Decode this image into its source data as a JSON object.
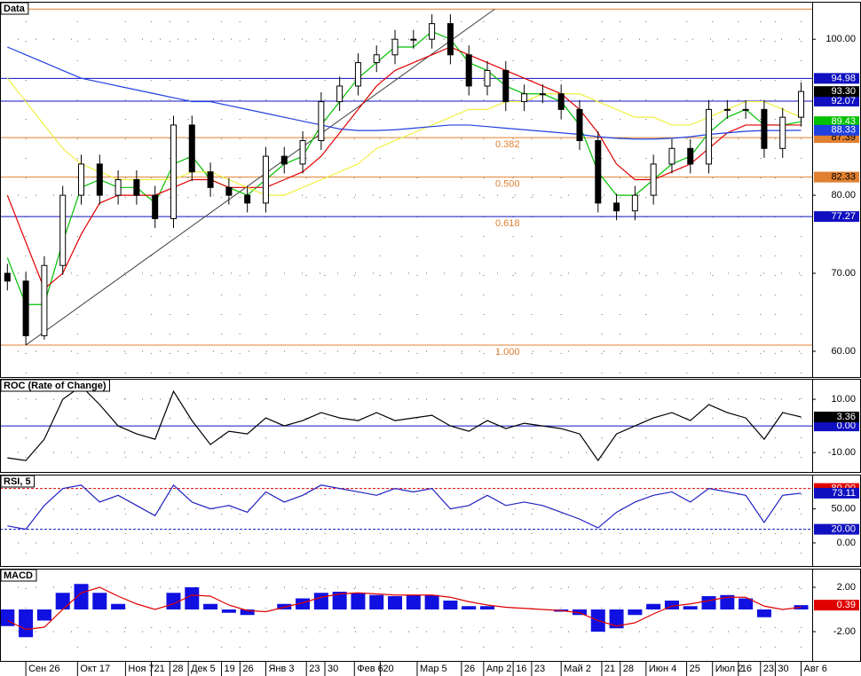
{
  "chart_data": [
    {
      "type": "candlestick",
      "title": "Data",
      "x": [
        2,
        7,
        12,
        17,
        22,
        27,
        32,
        37,
        42,
        47,
        52,
        57,
        62,
        67,
        72,
        77,
        82,
        87,
        92,
        97,
        102,
        107,
        112,
        117,
        122,
        127,
        132,
        137,
        142,
        147,
        152,
        157,
        162,
        167,
        172,
        177,
        182,
        187,
        192,
        197,
        202,
        207,
        212,
        217
      ],
      "xlim": [
        0,
        220
      ],
      "xticks": [
        {
          "value": 7,
          "label": "Сен 26"
        },
        {
          "value": 21,
          "label": "Окт 17"
        },
        {
          "value": 34,
          "label": "Ноя 7"
        },
        {
          "value": 41,
          "label": "21"
        },
        {
          "value": 46,
          "label": "28"
        },
        {
          "value": 51,
          "label": "Дек 5"
        },
        {
          "value": 60,
          "label": "19"
        },
        {
          "value": 65,
          "label": "26"
        },
        {
          "value": 72,
          "label": "Янв 3"
        },
        {
          "value": 83,
          "label": "23"
        },
        {
          "value": 88,
          "label": "30"
        },
        {
          "value": 96,
          "label": "Фев 6"
        },
        {
          "value": 103,
          "label": "20"
        },
        {
          "value": 113,
          "label": "Мар 5"
        },
        {
          "value": 125,
          "label": "26"
        },
        {
          "value": 131,
          "label": "Апр 2"
        },
        {
          "value": 139,
          "label": "16"
        },
        {
          "value": 144,
          "label": "23"
        },
        {
          "value": 152,
          "label": "Май 2"
        },
        {
          "value": 163,
          "label": "21"
        },
        {
          "value": 168,
          "label": "28"
        },
        {
          "value": 175,
          "label": "Июн 4"
        },
        {
          "value": 186,
          "label": "25"
        },
        {
          "value": 193,
          "label": "Июл 2"
        },
        {
          "value": 200,
          "label": "16"
        },
        {
          "value": 206,
          "label": "23"
        },
        {
          "value": 210,
          "label": "30"
        },
        {
          "value": 217,
          "label": "Авг 6"
        }
      ],
      "ylim": [
        56.7,
        104.8
      ],
      "yticks": [
        {
          "value": 100,
          "label": "100.00"
        },
        {
          "value": 80,
          "label": "80.00"
        },
        {
          "value": 70,
          "label": "70.00"
        },
        {
          "value": 60,
          "label": "60.00"
        }
      ],
      "grid": true,
      "open": [
        70,
        69,
        62,
        71,
        80,
        84,
        80,
        82,
        80,
        77,
        89,
        83,
        81,
        80,
        79,
        85,
        84,
        87,
        92,
        94,
        97,
        98,
        100,
        100,
        102,
        98,
        94,
        96,
        92,
        93,
        93,
        91,
        87,
        79,
        78,
        80,
        84,
        86,
        84,
        91,
        91,
        91,
        86,
        90
      ],
      "high": [
        71.2,
        70.2,
        72.2,
        81.2,
        85.2,
        85.2,
        83.2,
        83.2,
        81.2,
        90.2,
        90.2,
        84.2,
        82.2,
        81.2,
        86.2,
        86.2,
        88.2,
        93.2,
        95.2,
        98.2,
        99.2,
        101.2,
        101.2,
        103.2,
        103.2,
        99.2,
        97.2,
        97.2,
        94.2,
        94.2,
        94.2,
        92.2,
        88.2,
        80.2,
        81.2,
        85.2,
        87.2,
        87.2,
        92.2,
        92.2,
        92.2,
        92.2,
        91.2,
        94.5
      ],
      "low": [
        67.8,
        60.8,
        61.5,
        69.8,
        78.8,
        78.8,
        78.8,
        78.8,
        75.8,
        75.8,
        81.8,
        79.8,
        78.8,
        77.8,
        77.8,
        82.8,
        82.8,
        85.8,
        90.8,
        92.8,
        95.8,
        96.8,
        98.8,
        98.8,
        96.8,
        92.8,
        92.8,
        90.8,
        90.8,
        91.8,
        89.8,
        85.8,
        77.8,
        76.8,
        76.8,
        78.8,
        82.8,
        82.8,
        82.8,
        89.8,
        89.8,
        84.8,
        84.8,
        88.8
      ],
      "close": [
        69,
        62,
        71,
        80,
        84,
        80,
        82,
        80,
        77,
        89,
        83,
        81,
        80,
        79,
        85,
        84,
        87,
        92,
        94,
        97,
        98,
        100,
        100,
        102,
        98,
        94,
        96,
        92,
        93,
        93,
        91,
        87,
        79,
        78,
        80,
        84,
        86,
        84,
        91,
        91,
        91,
        86,
        90,
        93.3
      ],
      "series": [
        {
          "color": "#00c000",
          "values": [
            72,
            66,
            66,
            74,
            81,
            82,
            81,
            81,
            79,
            84,
            85,
            82,
            81,
            80,
            82,
            84,
            85,
            89,
            92,
            95,
            97,
            99,
            99,
            101,
            100,
            97,
            96,
            94,
            93,
            93,
            92,
            89,
            83,
            80,
            80,
            82,
            84,
            85,
            88,
            90,
            91,
            89,
            89,
            89.43
          ]
        },
        {
          "color": "#e00000",
          "values": [
            80,
            74,
            68,
            70,
            75,
            79,
            80,
            80,
            80,
            81,
            82,
            82,
            81,
            81,
            81,
            82,
            83,
            85,
            88,
            91,
            94,
            96,
            97,
            98,
            99,
            98,
            97,
            96,
            95,
            94,
            93,
            91,
            88,
            84,
            82,
            82,
            83,
            84,
            86,
            88,
            89,
            89,
            89,
            89
          ]
        },
        {
          "color": "#f0f040",
          "values": [
            95,
            92,
            89,
            86,
            84,
            83,
            82,
            82,
            82,
            82,
            83,
            83,
            82,
            81,
            80,
            80,
            81,
            82,
            83,
            84,
            86,
            87,
            88,
            89,
            90,
            91,
            91,
            92,
            92,
            93,
            93,
            93,
            92,
            91,
            90,
            90,
            89,
            89,
            90,
            91,
            92,
            92,
            91,
            90
          ]
        },
        {
          "color": "#2040e0",
          "values": [
            99,
            98,
            97,
            96,
            95,
            94.5,
            94,
            93.5,
            93,
            92.5,
            92,
            92,
            91.5,
            91,
            90.5,
            90,
            89.5,
            89,
            88.5,
            88.3,
            88.3,
            88.4,
            88.6,
            88.8,
            89,
            89,
            88.8,
            88.6,
            88.4,
            88.2,
            88,
            87.8,
            87.5,
            87.3,
            87.2,
            87.2,
            87.3,
            87.5,
            87.8,
            88,
            88.2,
            88.3,
            88.3,
            88.33
          ]
        }
      ],
      "trendline": {
        "color": "#404040",
        "x": [
          7,
          134
        ],
        "y": [
          60.8,
          103.86
        ]
      },
      "levels": [
        {
          "value": 103.86,
          "color": "#e08030"
        },
        {
          "value": 94.98,
          "color": "#1010c0",
          "label": "94.98"
        },
        {
          "value": 92.07,
          "color": "#1010c0",
          "label": "92.07"
        },
        {
          "value": 87.39,
          "color": "#e08030",
          "label": "87.39",
          "ratio": "0.382"
        },
        {
          "value": 82.33,
          "color": "#e08030",
          "label": "82.33",
          "ratio": "0.500"
        },
        {
          "value": 77.27,
          "color": "#1010c0",
          "label": "77.27",
          "ratio": "0.618"
        },
        {
          "value": 60.8,
          "color": "#e08030",
          "ratio": "1.000"
        }
      ],
      "markers": [
        {
          "value": 93.3,
          "label": "93.30",
          "color": "#000000"
        },
        {
          "value": 89.43,
          "label": "89.43",
          "color": "#00c000"
        },
        {
          "value": 88.33,
          "label": "88.33",
          "color": "#2040e0"
        }
      ]
    },
    {
      "type": "line",
      "title": "ROC (Rate of Change)",
      "ylim": [
        -17.3,
        17.7
      ],
      "yticks": [
        {
          "value": 10,
          "label": "10.00"
        },
        {
          "value": -10,
          "label": "-10.00"
        }
      ],
      "series": [
        {
          "color": "#000000",
          "values": [
            -12,
            -13,
            -5,
            10,
            15,
            8,
            0,
            -3,
            -5,
            13,
            2,
            -7,
            -2,
            -3,
            3,
            0,
            2,
            5,
            3,
            2,
            5,
            2,
            3,
            4,
            0,
            -2,
            2,
            -1,
            1,
            0,
            -1,
            -3,
            -13,
            -3,
            0,
            3,
            5,
            2,
            8,
            5,
            3,
            -5,
            5,
            3.36
          ]
        }
      ],
      "levels": [
        {
          "value": 0,
          "color": "#1010c0",
          "label": "0.00"
        }
      ],
      "markers": [
        {
          "value": 3.36,
          "label": "3.36",
          "color": "#000000"
        }
      ]
    },
    {
      "type": "line",
      "title": "RSI, 5",
      "ylim": [
        -34,
        100.4
      ],
      "yticks": [
        {
          "value": 50,
          "label": "50.00"
        },
        {
          "value": 0,
          "label": "0.00"
        }
      ],
      "series": [
        {
          "color": "#2020c0",
          "values": [
            25,
            20,
            55,
            80,
            85,
            60,
            70,
            55,
            40,
            85,
            60,
            50,
            55,
            45,
            75,
            60,
            70,
            85,
            80,
            75,
            70,
            80,
            75,
            80,
            50,
            55,
            70,
            55,
            60,
            55,
            45,
            35,
            22,
            45,
            60,
            70,
            75,
            60,
            80,
            75,
            70,
            30,
            70,
            73.11
          ]
        }
      ],
      "levels": [
        {
          "value": 80,
          "color": "#e00000",
          "label": "80.00",
          "dash": true
        },
        {
          "value": 20,
          "color": "#1010c0",
          "label": "20.00",
          "dash": true
        }
      ],
      "markers": [
        {
          "value": 73.11,
          "label": "73.11",
          "color": "#1010c0"
        }
      ]
    },
    {
      "type": "bar",
      "title": "MACD",
      "ylim": [
        -4.64,
        3.68
      ],
      "yticks": [
        {
          "value": 2,
          "label": "2.00"
        },
        {
          "value": -2,
          "label": "-2.00"
        }
      ],
      "color": "#1010e0",
      "values": [
        -1.5,
        -2.5,
        -1,
        1.5,
        2.3,
        1.5,
        0.5,
        0,
        0,
        1.5,
        2,
        0.5,
        -0.3,
        -0.5,
        0,
        0.5,
        1,
        1.5,
        1.6,
        1.5,
        1.3,
        1.2,
        1.3,
        1.3,
        0.8,
        0.3,
        0.3,
        0,
        0,
        0,
        -0.2,
        -0.5,
        -2,
        -1.7,
        -0.5,
        0.5,
        0.8,
        0.3,
        1.2,
        1.3,
        1,
        -0.7,
        0,
        0.39
      ],
      "series": [
        {
          "color": "#e00000",
          "values": [
            -1,
            -1.8,
            -1.6,
            0,
            1.5,
            2,
            1.2,
            0.5,
            0,
            0.5,
            1.3,
            1.2,
            0.4,
            -0.1,
            -0.2,
            0.2,
            0.6,
            1.1,
            1.4,
            1.5,
            1.4,
            1.3,
            1.3,
            1.3,
            1.1,
            0.7,
            0.4,
            0.2,
            0.1,
            0,
            -0.1,
            -0.3,
            -1,
            -1.5,
            -1.2,
            -0.4,
            0.3,
            0.5,
            0.8,
            1.1,
            1.1,
            0.3,
            0,
            0.2
          ]
        }
      ],
      "markers": [
        {
          "value": 0.39,
          "label": "0.39",
          "color": "#e00000"
        }
      ]
    }
  ]
}
